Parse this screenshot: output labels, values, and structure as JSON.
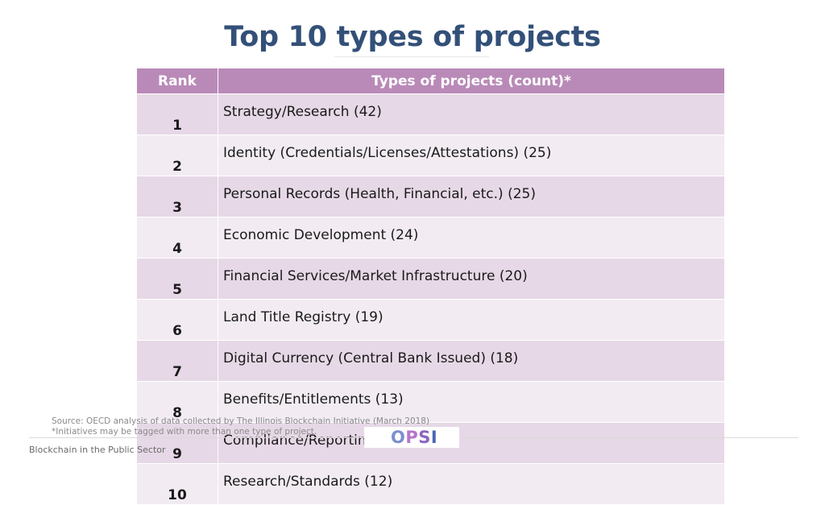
{
  "slide": {
    "title": "Top 10 types of projects"
  },
  "table": {
    "headers": {
      "rank": "Rank",
      "type": "Types of projects (count)*"
    },
    "rows": [
      {
        "rank": "1",
        "type": "Strategy/Research (42)"
      },
      {
        "rank": "2",
        "type": "Identity (Credentials/Licenses/Attestations) (25)"
      },
      {
        "rank": "3",
        "type": "Personal Records (Health, Financial, etc.) (25)"
      },
      {
        "rank": "4",
        "type": "Economic Development (24)"
      },
      {
        "rank": "5",
        "type": "Financial Services/Market Infrastructure (20)"
      },
      {
        "rank": "6",
        "type": "Land Title Registry (19)"
      },
      {
        "rank": "7",
        "type": "Digital Currency (Central Bank Issued) (18)"
      },
      {
        "rank": "8",
        "type": "Benefits/Entitlements (13)"
      },
      {
        "rank": "9",
        "type": "Compliance/Reporting (12)"
      },
      {
        "rank": "10",
        "type": "Research/Standards (12)"
      }
    ]
  },
  "notes": {
    "source": "Source: OECD analysis of data collected by The Illinois Blockchain Initiative (March 2018)",
    "footnote": "*Initiatives may be tagged with more than one type of project."
  },
  "footer": {
    "logo": {
      "o": "O",
      "p": "P",
      "s": "S",
      "i": "I"
    },
    "text": "Blockchain in the Public Sector"
  },
  "colors": {
    "title": "#335078",
    "header_bg": "#b98ab8",
    "row_odd": "#e6d8e6",
    "row_even": "#f2ecf2"
  }
}
